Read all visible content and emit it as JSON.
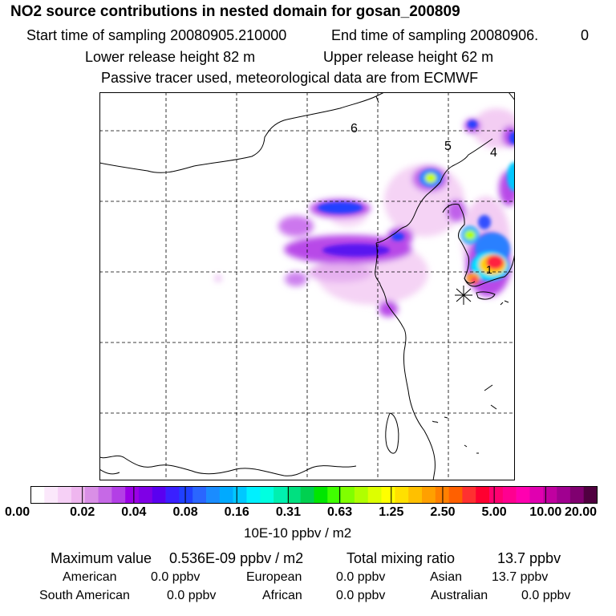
{
  "header": {
    "title": "NO2 source contributions in nested domain for gosan_200809",
    "start_label": "Start time of sampling 20080905.210000",
    "end_label": "End time of sampling 20080906.",
    "end_value": "0",
    "lower_release": "Lower release height   82 m",
    "upper_release": "Upper release height   62 m",
    "tracer_note": "Passive tracer used, meteorological data are from ECMWF"
  },
  "map": {
    "region_labels": [
      "6",
      "5",
      "4",
      "1"
    ],
    "receptor_marker": "star-marker"
  },
  "colorbar": {
    "ticks": [
      "0.00",
      "0.02",
      "0.04",
      "0.08",
      "0.16",
      "0.31",
      "0.63",
      "1.25",
      "2.50",
      "5.00",
      "10.00",
      "20.00"
    ],
    "colors": [
      "#ffffff",
      "#fbe8fb",
      "#f6d0f6",
      "#efb6ef",
      "#d98fe6",
      "#c669e6",
      "#b33fe6",
      "#9b00e6",
      "#7f00e6",
      "#5a00f0",
      "#3a20ff",
      "#2040ff",
      "#2a66ff",
      "#1a8cff",
      "#00aaff",
      "#00c8ff",
      "#00f0ff",
      "#00ffe0",
      "#00f0b0",
      "#00e080",
      "#00d050",
      "#00e600",
      "#40ff00",
      "#80ff00",
      "#b0ff00",
      "#ddff00",
      "#ffff00",
      "#ffe000",
      "#ffc000",
      "#ffa000",
      "#ff8000",
      "#ff6000",
      "#ff3030",
      "#ff0030",
      "#ff0070",
      "#ff0090",
      "#ff00b0",
      "#e000b0",
      "#c000a0",
      "#a00090",
      "#800070",
      "#500040"
    ],
    "unit": "10E-10 ppbv / m2"
  },
  "stats": {
    "max_label": "Maximum value",
    "max_value": "0.536E-09 ppbv / m2",
    "total_label": "Total mixing ratio",
    "total_value": "13.7 ppbv",
    "regions": [
      {
        "name": "American",
        "value": "0.0 ppbv"
      },
      {
        "name": "European",
        "value": "0.0 ppbv"
      },
      {
        "name": "Asian",
        "value": "13.7 ppbv"
      },
      {
        "name": "South American",
        "value": "0.0 ppbv"
      },
      {
        "name": "African",
        "value": "0.0 ppbv"
      },
      {
        "name": "Australian",
        "value": "0.0 ppbv"
      }
    ]
  }
}
